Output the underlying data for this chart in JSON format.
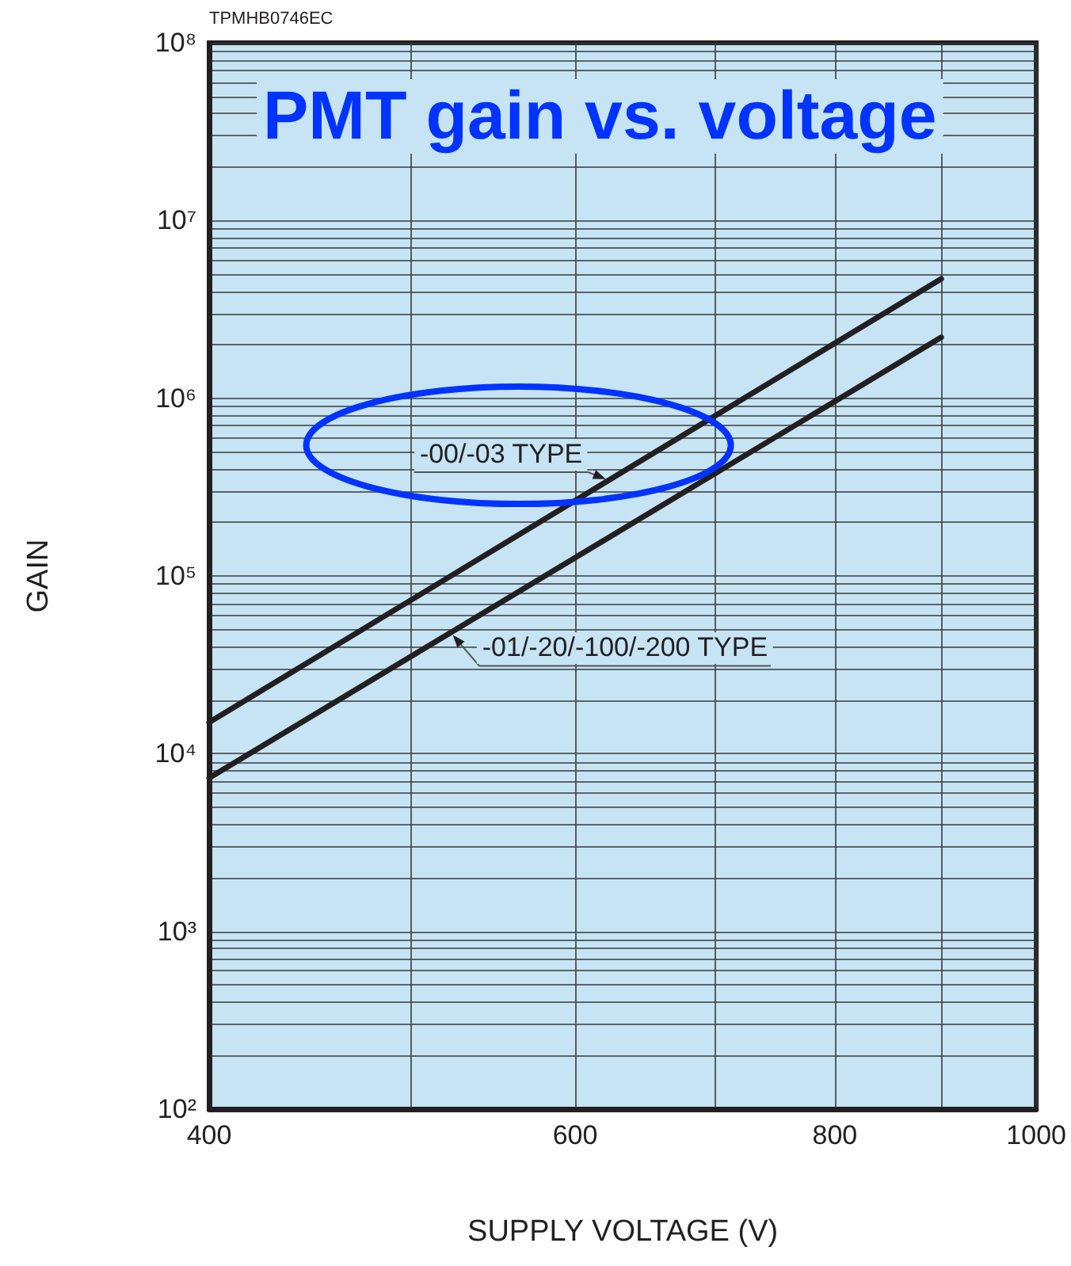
{
  "chart_data": {
    "type": "line",
    "title": "PMT gain vs. voltage",
    "xlabel": "SUPPLY VOLTAGE (V)",
    "ylabel": "GAIN",
    "annotations": [
      "TPMHB0746EC"
    ],
    "log": "xy",
    "grid": true,
    "marker": "none",
    "line_style": "solid",
    "x": [
      400,
      900
    ],
    "xlim": [
      400,
      1000
    ],
    "ylim": [
      100,
      100000000
    ],
    "xticks": [
      400,
      {
        "value": 500,
        "label": null
      },
      600,
      {
        "value": 700,
        "label": null
      },
      800,
      {
        "value": 900,
        "label": null
      },
      1000
    ],
    "yticks": [
      {
        "value": 100,
        "label": "10²"
      },
      {
        "value": 200,
        "label": null
      },
      {
        "value": 300,
        "label": null
      },
      {
        "value": 400,
        "label": null
      },
      {
        "value": 500,
        "label": null
      },
      {
        "value": 600,
        "label": null
      },
      {
        "value": 700,
        "label": null
      },
      {
        "value": 800,
        "label": null
      },
      {
        "value": 900,
        "label": null
      },
      {
        "value": 1000,
        "label": "10³"
      },
      {
        "value": 2000,
        "label": null
      },
      {
        "value": 3000,
        "label": null
      },
      {
        "value": 4000,
        "label": null
      },
      {
        "value": 5000,
        "label": null
      },
      {
        "value": 6000,
        "label": null
      },
      {
        "value": 7000,
        "label": null
      },
      {
        "value": 8000,
        "label": null
      },
      {
        "value": 9000,
        "label": null
      },
      {
        "value": 10000,
        "label": "10⁴"
      },
      {
        "value": 20000,
        "label": null
      },
      {
        "value": 30000,
        "label": null
      },
      {
        "value": 40000,
        "label": null
      },
      {
        "value": 50000,
        "label": null
      },
      {
        "value": 60000,
        "label": null
      },
      {
        "value": 70000,
        "label": null
      },
      {
        "value": 80000,
        "label": null
      },
      {
        "value": 90000,
        "label": null
      },
      {
        "value": 100000,
        "label": "10⁵"
      },
      {
        "value": 200000,
        "label": null
      },
      {
        "value": 300000,
        "label": null
      },
      {
        "value": 400000,
        "label": null
      },
      {
        "value": 500000,
        "label": null
      },
      {
        "value": 600000,
        "label": null
      },
      {
        "value": 700000,
        "label": null
      },
      {
        "value": 800000,
        "label": null
      },
      {
        "value": 900000,
        "label": null
      },
      {
        "value": 1000000,
        "label": "10⁶"
      },
      {
        "value": 2000000,
        "label": null
      },
      {
        "value": 3000000,
        "label": null
      },
      {
        "value": 4000000,
        "label": null
      },
      {
        "value": 5000000,
        "label": null
      },
      {
        "value": 6000000,
        "label": null
      },
      {
        "value": 7000000,
        "label": null
      },
      {
        "value": 8000000,
        "label": null
      },
      {
        "value": 9000000,
        "label": null
      },
      {
        "value": 10000000,
        "label": "10⁷"
      },
      {
        "value": 20000000,
        "label": null
      },
      {
        "value": 30000000,
        "label": null
      },
      {
        "value": 40000000,
        "label": null
      },
      {
        "value": 50000000,
        "label": null
      },
      {
        "value": 60000000,
        "label": null
      },
      {
        "value": 70000000,
        "label": null
      },
      {
        "value": 80000000,
        "label": null
      },
      {
        "value": 90000000,
        "label": null
      },
      {
        "value": 100000000,
        "label": "10⁸"
      }
    ],
    "series": [
      {
        "name": "-00/-03 TYPE",
        "color": "#231f20",
        "values": [
          15000,
          4700000
        ]
      },
      {
        "name": "-01/-20/-100/-200 TYPE",
        "color": "#231f20",
        "values": [
          7300,
          2200000
        ]
      }
    ]
  }
}
